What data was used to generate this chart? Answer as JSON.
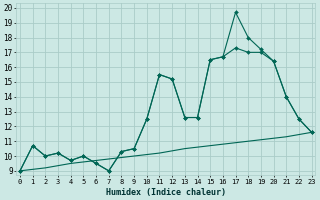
{
  "xlabel": "Humidex (Indice chaleur)",
  "bg_color": "#cce8e4",
  "grid_color": "#aaccc8",
  "line_color": "#006655",
  "xlim": [
    0,
    23
  ],
  "ylim": [
    9,
    20
  ],
  "x_ticks": [
    0,
    1,
    2,
    3,
    4,
    5,
    6,
    7,
    8,
    9,
    10,
    11,
    12,
    13,
    14,
    15,
    16,
    17,
    18,
    19,
    20,
    21,
    22,
    23
  ],
  "y_ticks": [
    9,
    10,
    11,
    12,
    13,
    14,
    15,
    16,
    17,
    18,
    19,
    20
  ],
  "series1": [
    9.0,
    10.7,
    10.0,
    10.2,
    9.7,
    10.0,
    9.5,
    9.0,
    10.3,
    10.5,
    12.5,
    15.5,
    15.2,
    12.6,
    12.6,
    16.5,
    16.7,
    19.7,
    18.0,
    17.2,
    16.4,
    14.0,
    12.5,
    11.6
  ],
  "series2": [
    9.0,
    10.7,
    10.0,
    10.2,
    9.7,
    10.0,
    9.5,
    9.0,
    10.3,
    10.5,
    12.5,
    15.5,
    15.2,
    12.6,
    12.6,
    16.5,
    16.7,
    17.3,
    17.0,
    17.0,
    16.4,
    14.0,
    12.5,
    11.6
  ],
  "series3": [
    9.0,
    9.1,
    9.2,
    9.35,
    9.5,
    9.6,
    9.7,
    9.8,
    9.9,
    10.0,
    10.1,
    10.2,
    10.35,
    10.5,
    10.6,
    10.7,
    10.8,
    10.9,
    11.0,
    11.1,
    11.2,
    11.3,
    11.45,
    11.6
  ]
}
